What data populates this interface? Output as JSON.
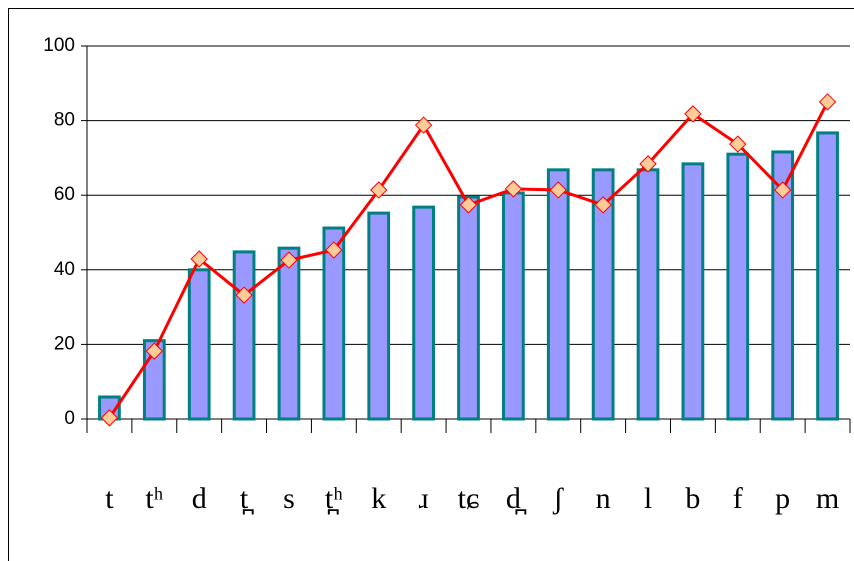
{
  "chart_data": {
    "type": "bar",
    "categories": [
      "t",
      "tʰ",
      "d",
      "t̪",
      "s",
      "t̪ʰ",
      "k",
      "ɹ",
      "tɕ",
      "d̪",
      "ʃ",
      "n",
      "l",
      "b",
      "f",
      "p",
      "m"
    ],
    "series": [
      {
        "type": "bar",
        "color": "#9999ff",
        "stroke": "#008080",
        "values": [
          5.9,
          21,
          40,
          44.8,
          45.8,
          51.2,
          55.2,
          56.8,
          59.5,
          60.6,
          66.8,
          66.8,
          66.8,
          68.4,
          71,
          71.6,
          76.7
        ]
      },
      {
        "type": "line",
        "color": "#ff0000",
        "marker_color": "#ffcc99",
        "values": [
          0.3,
          18.2,
          42.9,
          33.2,
          42.6,
          45.3,
          61.4,
          78.8,
          57.4,
          61.7,
          61.4,
          57.4,
          68.4,
          81.8,
          73.7,
          61.4,
          85
        ]
      }
    ],
    "ylim": [
      0,
      100
    ],
    "yticks": [
      0,
      20,
      40,
      60,
      80,
      100
    ],
    "grid": true
  }
}
